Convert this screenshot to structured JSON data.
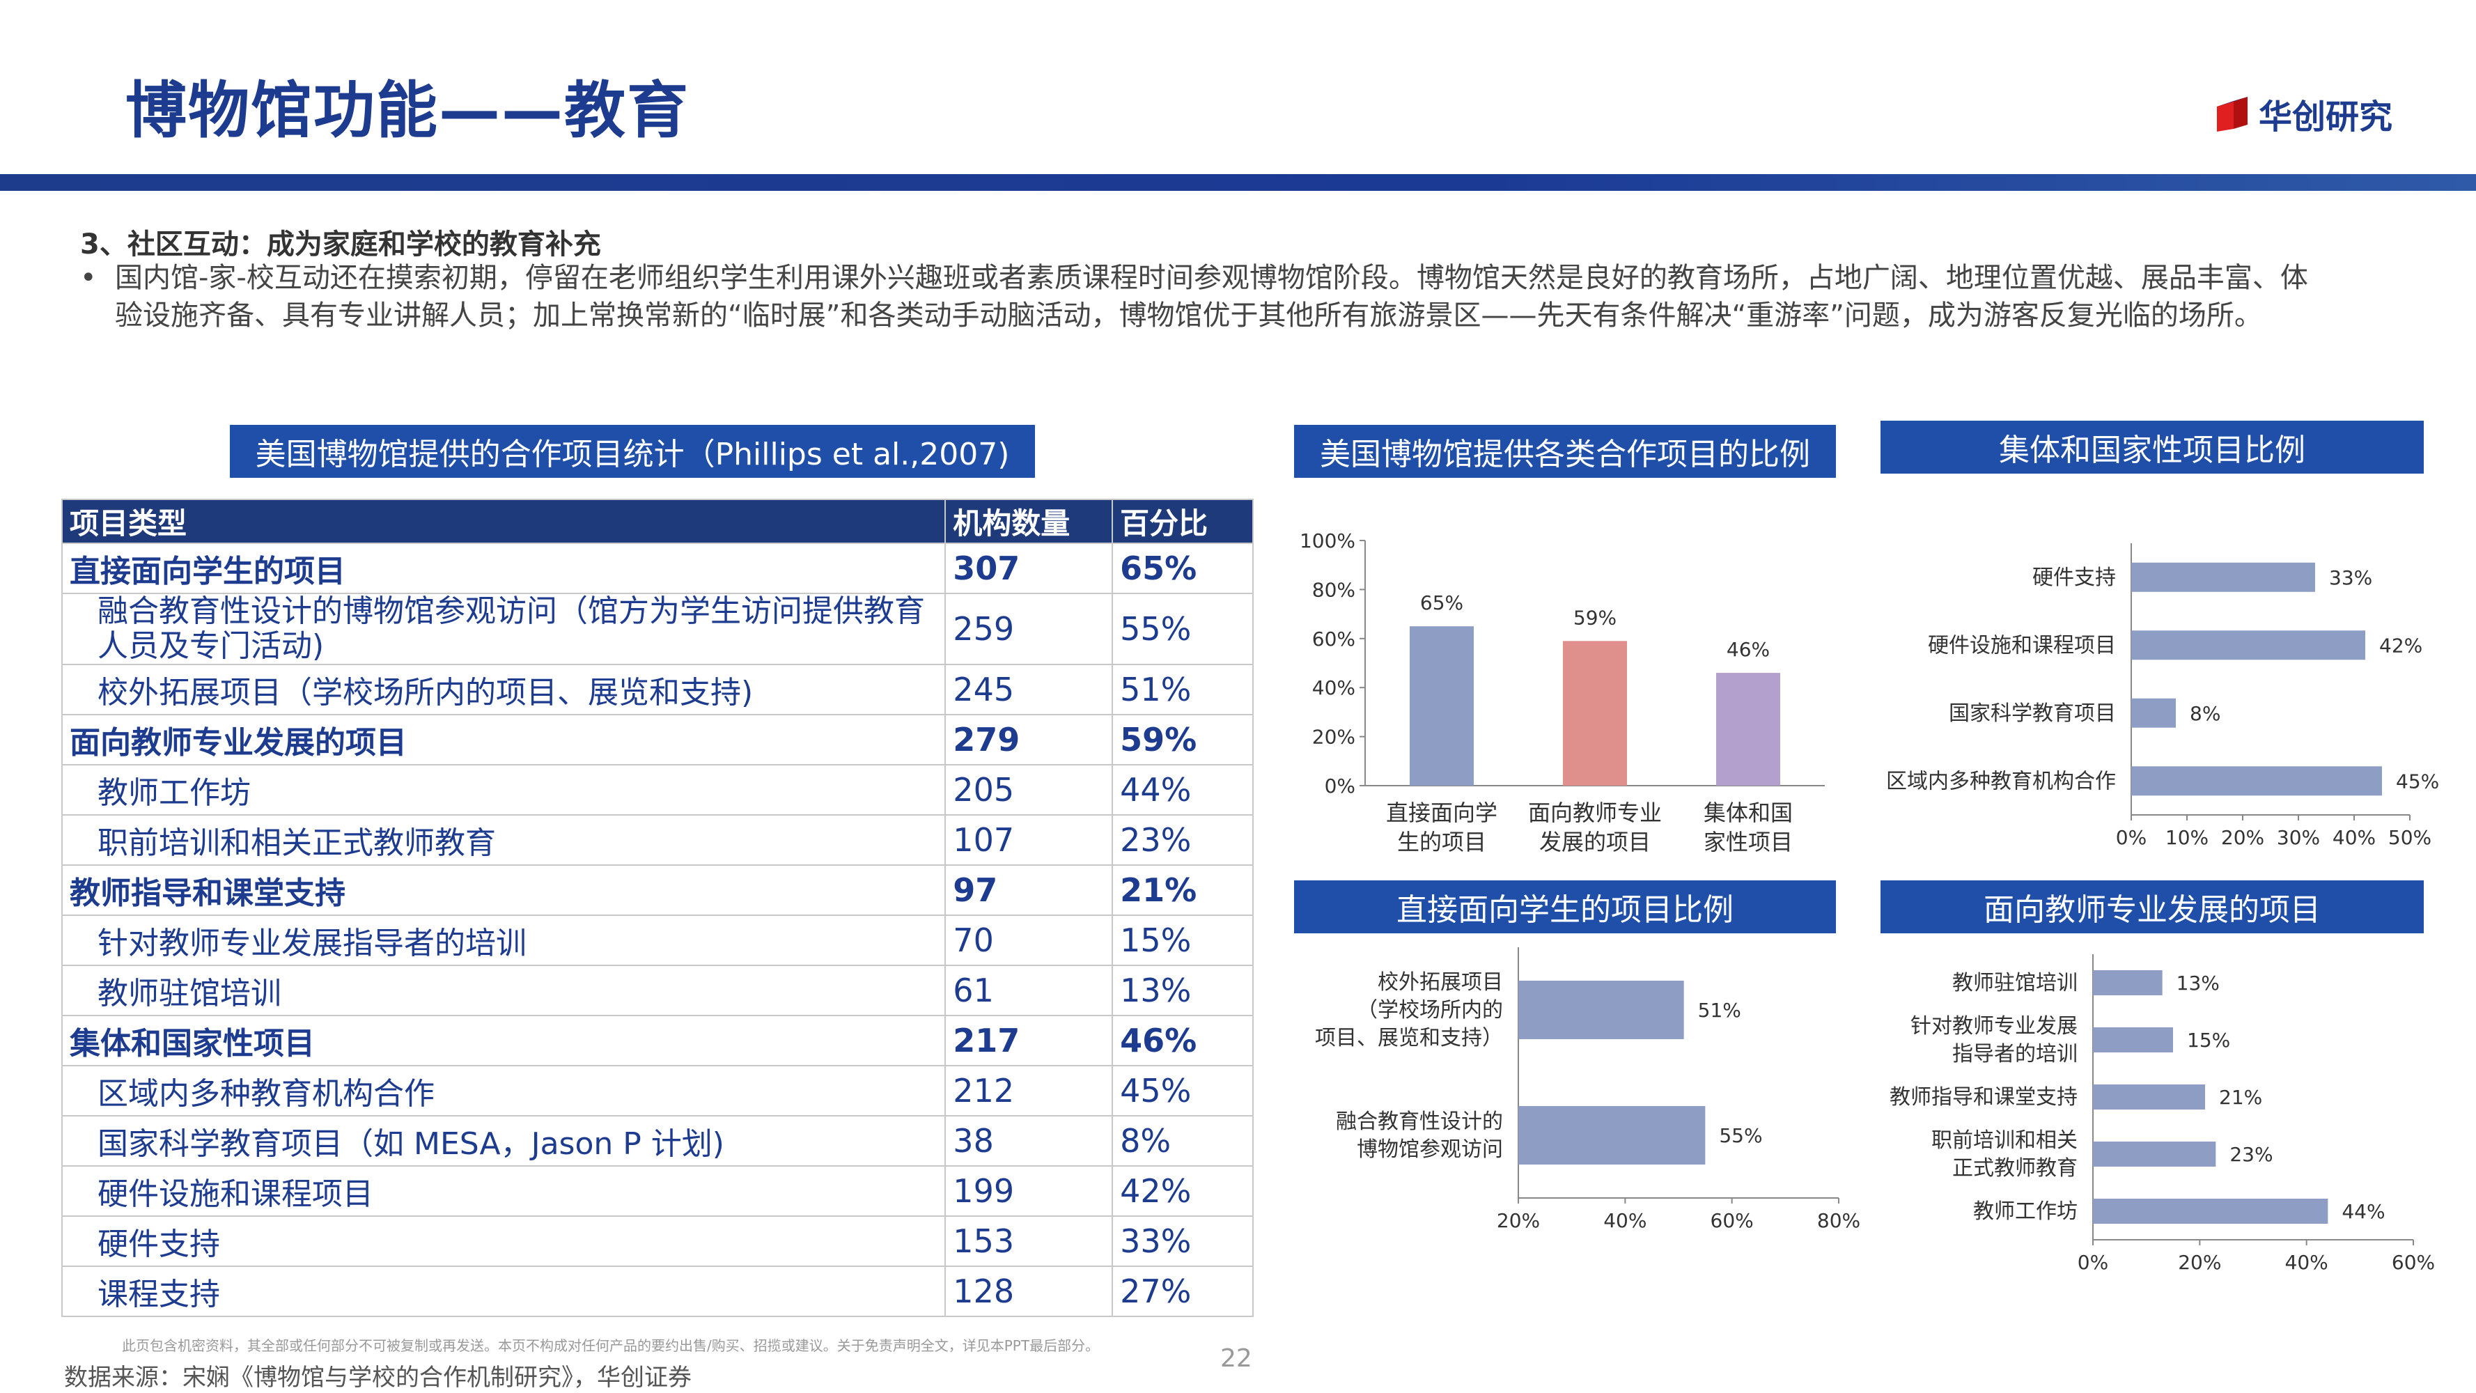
{
  "page": {
    "title": "博物馆功能——教育",
    "logo_text": "华创研究",
    "section_title": "3、社区互动：成为家庭和学校的教育补充",
    "bullet": "国内馆-家-校互动还在摸索初期，停留在老师组织学生利用课外兴趣班或者素质课程时间参观博物馆阶段。博物馆天然是良好的教育场所，占地广阔、地理位置优越、展品丰富、体验设施齐备、具有专业讲解人员；加上常换常新的“临时展”和各类动手动脑活动，博物馆优于其他所有旅游景区——先天有条件解决“重游率”问题，成为游客反复光临的场所。",
    "disclaimer": "此页包含机密资料，其全部或任何部分不可被复制或再发送。本页不构成对任何产品的要约出售/购买、招揽或建议。关于免责声明全文，详见本PPT最后部分。",
    "page_number": "22",
    "source": "数据来源：宋娴《博物馆与学校的合作机制研究》，华创证券",
    "colors": {
      "brand": "#1d3c8f",
      "header_bg": "#1f4fa8",
      "bar_blue": "#8e9dc4",
      "bar_red": "#e0908c",
      "bar_purple": "#b3a0cd"
    }
  },
  "table": {
    "caption": "美国博物馆提供的合作项目统计（Phillips et al.,2007)",
    "headers": [
      "项目类型",
      "机构数量",
      "百分比"
    ],
    "rows": [
      {
        "label": "直接面向学生的项目",
        "count": "307",
        "pct": "65%",
        "group": true
      },
      {
        "label": "融合教育性设计的博物馆参观访问（馆方为学生访问提供教育人员及专门活动)",
        "count": "259",
        "pct": "55%",
        "group": false
      },
      {
        "label": "校外拓展项目（学校场所内的项目、展览和支持)",
        "count": "245",
        "pct": "51%",
        "group": false
      },
      {
        "label": "面向教师专业发展的项目",
        "count": "279",
        "pct": "59%",
        "group": true
      },
      {
        "label": "教师工作坊",
        "count": "205",
        "pct": "44%",
        "group": false
      },
      {
        "label": "职前培训和相关正式教师教育",
        "count": "107",
        "pct": "23%",
        "group": false
      },
      {
        "label": "教师指导和课堂支持",
        "count": "97",
        "pct": "21%",
        "group": true
      },
      {
        "label": "针对教师专业发展指导者的培训",
        "count": "70",
        "pct": "15%",
        "group": false
      },
      {
        "label": "教师驻馆培训",
        "count": "61",
        "pct": "13%",
        "group": false
      },
      {
        "label": "集体和国家性项目",
        "count": "217",
        "pct": "46%",
        "group": true
      },
      {
        "label": "区域内多种教育机构合作",
        "count": "212",
        "pct": "45%",
        "group": false
      },
      {
        "label": "国家科学教育项目（如 MESA，Jason P 计划)",
        "count": "38",
        "pct": "8%",
        "group": false
      },
      {
        "label": "硬件设施和课程项目",
        "count": "199",
        "pct": "42%",
        "group": false
      },
      {
        "label": "硬件支持",
        "count": "153",
        "pct": "33%",
        "group": false
      },
      {
        "label": "课程支持",
        "count": "128",
        "pct": "27%",
        "group": false
      }
    ]
  },
  "chart_data": [
    {
      "type": "bar",
      "title": "美国博物馆提供各类合作项目的比例",
      "categories": [
        "直接面向学生的项目",
        "面向教师专业发展的项目",
        "集体和国家性项目"
      ],
      "category_lines": [
        [
          "直接面向学",
          "生的项目"
        ],
        [
          "面向教师专业",
          "发展的项目"
        ],
        [
          "集体和国",
          "家性项目"
        ]
      ],
      "values": [
        65,
        59,
        46
      ],
      "value_labels": [
        "65%",
        "59%",
        "46%"
      ],
      "colors": [
        "#8e9dc4",
        "#e0908c",
        "#b3a0cd"
      ],
      "ylim": [
        0,
        100
      ],
      "ticks": [
        0,
        20,
        40,
        60,
        80,
        100
      ],
      "tick_labels": [
        "0%",
        "20%",
        "40%",
        "60%",
        "80%",
        "100%"
      ],
      "grid": false
    },
    {
      "type": "bar",
      "orientation": "horizontal",
      "title": "集体和国家性项目比例",
      "categories": [
        "硬件支持",
        "硬件设施和课程项目",
        "国家科学教育项目",
        "区域内多种教育机构合作"
      ],
      "category_lines": [
        [
          "硬件支持"
        ],
        [
          "硬件设施和课程项目"
        ],
        [
          "国家科学教育项目"
        ],
        [
          "区域内多种教育机构合作"
        ]
      ],
      "values": [
        33,
        42,
        8,
        45
      ],
      "value_labels": [
        "33%",
        "42%",
        "8%",
        "45%"
      ],
      "xlim": [
        0,
        50
      ],
      "ticks": [
        0,
        10,
        20,
        30,
        40,
        50
      ],
      "tick_labels": [
        "0%",
        "10%",
        "20%",
        "30%",
        "40%",
        "50%"
      ],
      "grid": false
    },
    {
      "type": "bar",
      "orientation": "horizontal",
      "title": "直接面向学生的项目比例",
      "categories": [
        "校外拓展项目（学校场所内的项目、展览和支持）",
        "融合教育性设计的博物馆参观访问"
      ],
      "category_lines": [
        [
          "校外拓展项目",
          "（学校场所内的",
          "项目、展览和支持）"
        ],
        [
          "融合教育性设计的",
          "博物馆参观访问"
        ]
      ],
      "values": [
        51,
        55
      ],
      "value_labels": [
        "51%",
        "55%"
      ],
      "xlim": [
        20,
        80
      ],
      "ticks": [
        20,
        40,
        60,
        80
      ],
      "tick_labels": [
        "20%",
        "40%",
        "60%",
        "80%"
      ],
      "grid": false
    },
    {
      "type": "bar",
      "orientation": "horizontal",
      "title": "面向教师专业发展的项目",
      "categories": [
        "教师驻馆培训",
        "针对教师专业发展指导者的培训",
        "教师指导和课堂支持",
        "职前培训和相关正式教师教育",
        "教师工作坊"
      ],
      "category_lines": [
        [
          "教师驻馆培训"
        ],
        [
          "针对教师专业发展",
          "指导者的培训"
        ],
        [
          "教师指导和课堂支持"
        ],
        [
          "职前培训和相关",
          "正式教师教育"
        ],
        [
          "教师工作坊"
        ]
      ],
      "values": [
        13,
        15,
        21,
        23,
        44
      ],
      "value_labels": [
        "13%",
        "15%",
        "21%",
        "23%",
        "44%"
      ],
      "xlim": [
        0,
        60
      ],
      "ticks": [
        0,
        20,
        40,
        60
      ],
      "tick_labels": [
        "0%",
        "20%",
        "40%",
        "60%"
      ],
      "grid": false
    }
  ]
}
